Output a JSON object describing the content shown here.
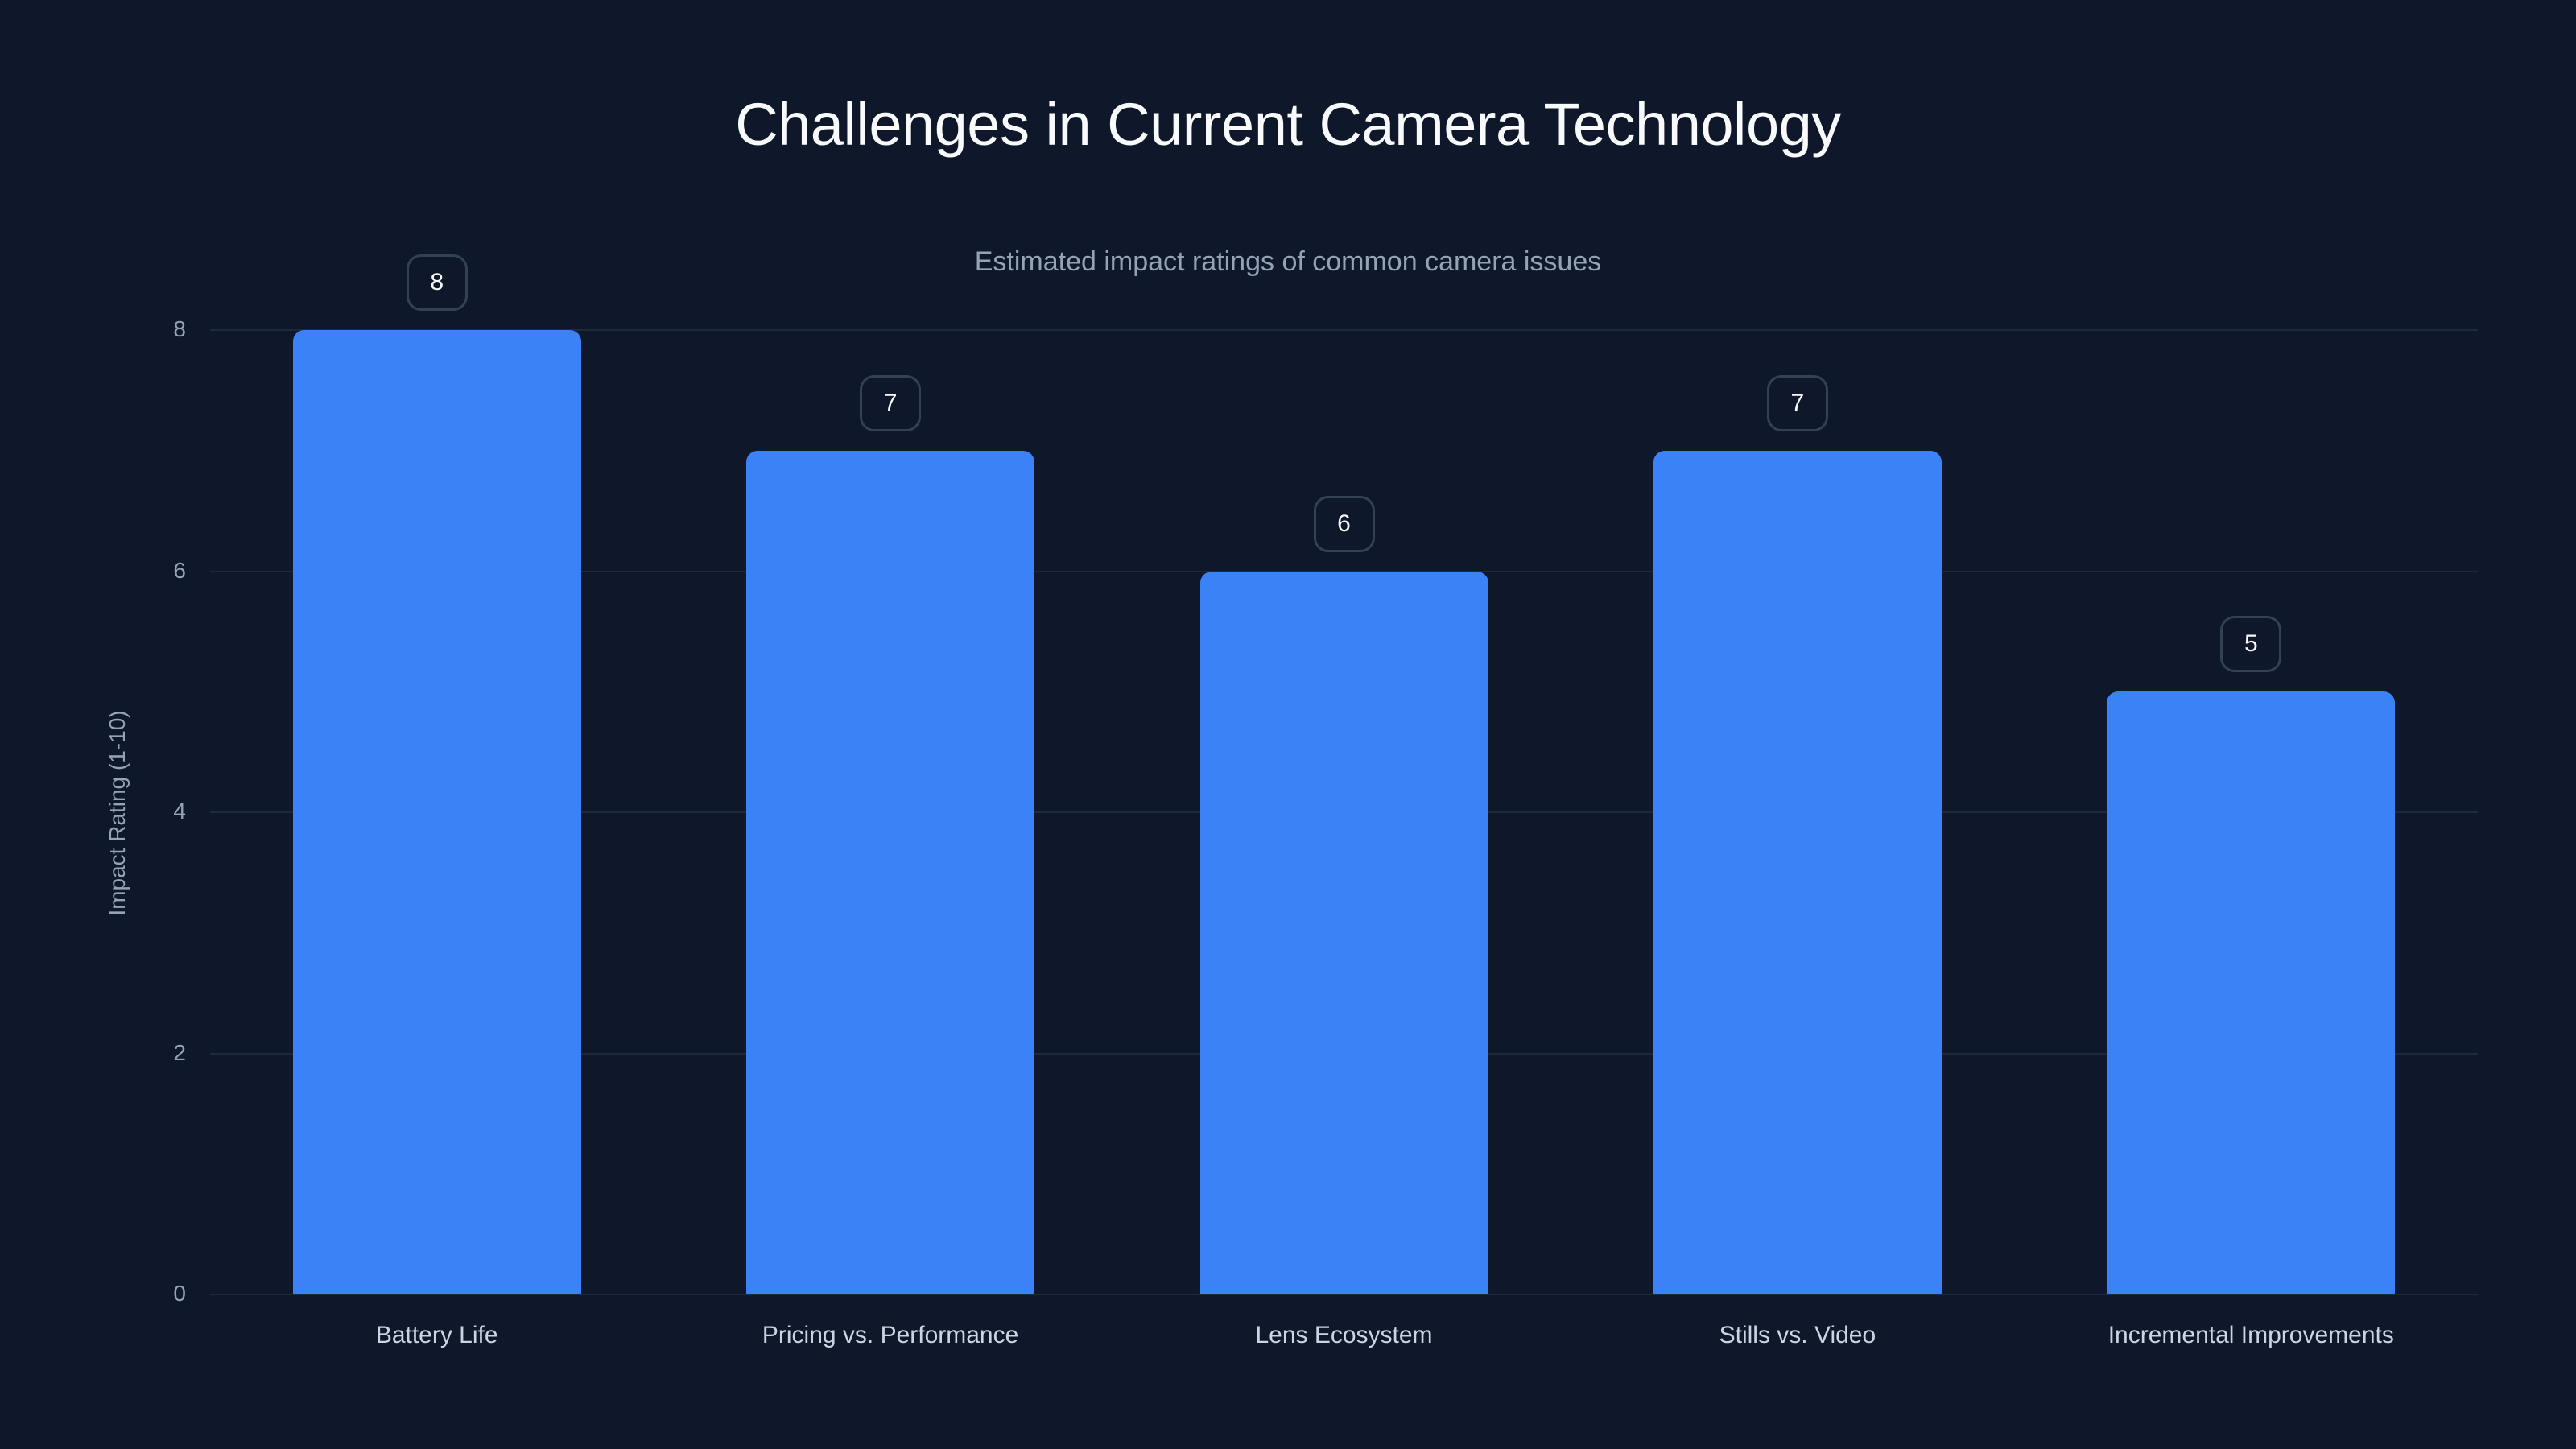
{
  "chart_data": {
    "type": "bar",
    "title": "Challenges in Current Camera Technology",
    "subtitle": "Estimated impact ratings of common camera issues",
    "xlabel": "",
    "ylabel": "Impact Rating (1-10)",
    "categories": [
      "Battery Life",
      "Pricing vs. Performance",
      "Lens Ecosystem",
      "Stills vs. Video",
      "Incremental Improvements"
    ],
    "values": [
      8,
      7,
      6,
      7,
      5
    ],
    "ylim": [
      0,
      8
    ],
    "yticks": [
      "0",
      "2",
      "4",
      "6",
      "8"
    ],
    "grid": true,
    "data_labels": [
      "8",
      "7",
      "6",
      "7",
      "5"
    ],
    "legend": null
  },
  "colors": {
    "background": "#0f172a",
    "bar": "#3b82f6",
    "gridline": "#1e293b",
    "title": "#f8fafc",
    "axis_text": "#94a3b8"
  }
}
